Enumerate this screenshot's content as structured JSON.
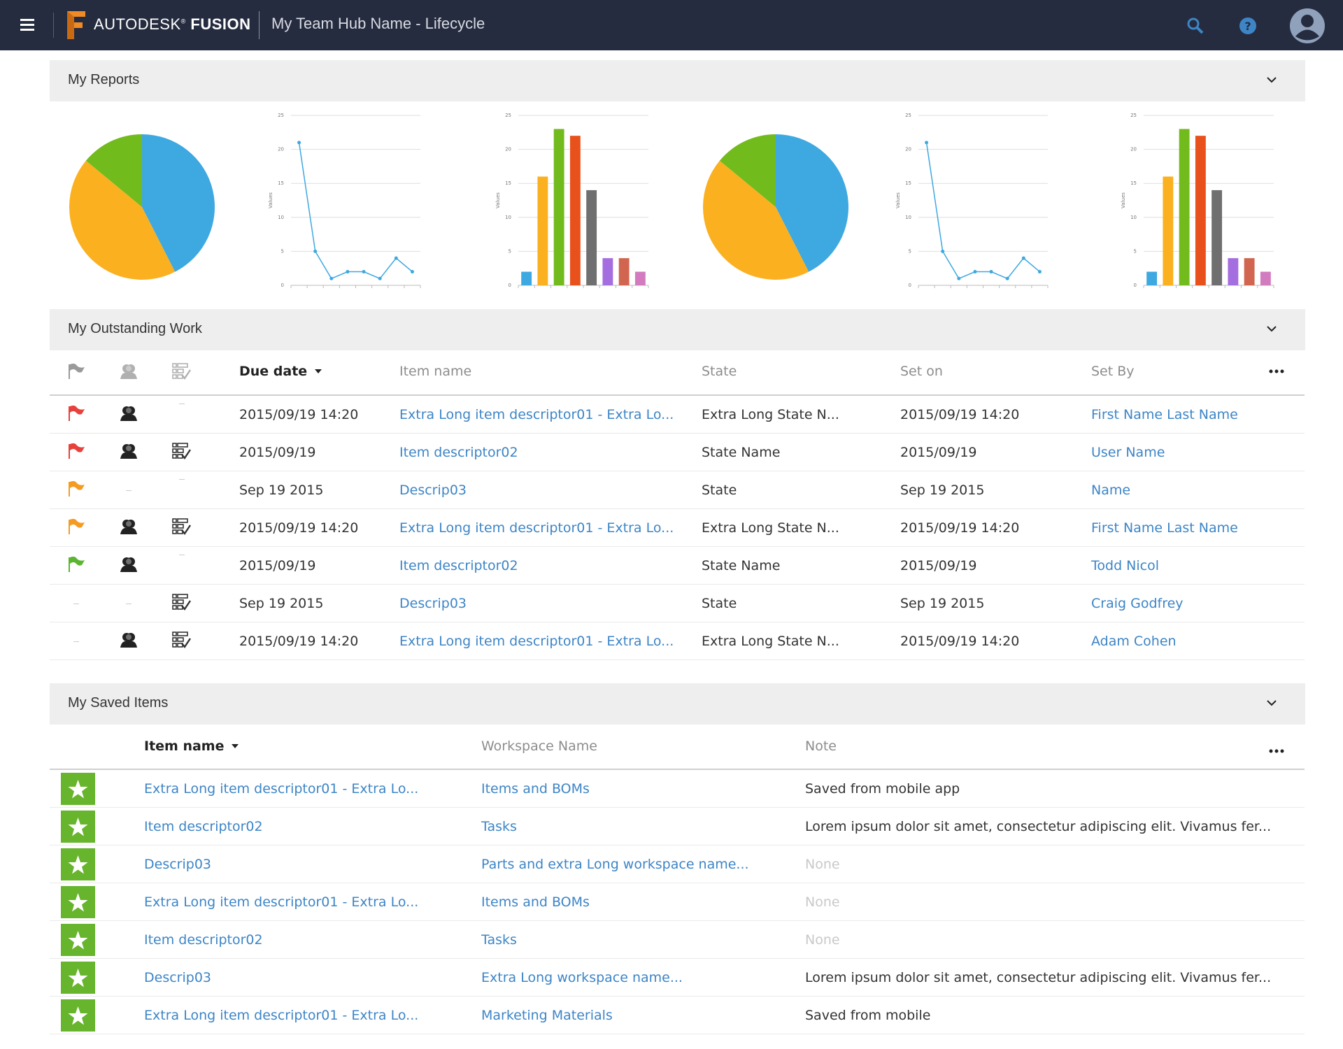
{
  "header": {
    "brand": "AUTODESK",
    "brand_mark": "®",
    "product": "FUSION",
    "hub_title": "My Team Hub Name - Lifecycle"
  },
  "reports": {
    "title": "My Reports",
    "charts": [
      {
        "type": "pie",
        "values": [
          42.5,
          43.5,
          14
        ],
        "colors": [
          "#3ea8e0",
          "#fbb020",
          "#72bb1d"
        ]
      },
      {
        "type": "line",
        "ylabel": "Values",
        "values": [
          21,
          5,
          1,
          2,
          2,
          1,
          4,
          2
        ],
        "color": "#3ea8e0",
        "ylim": [
          0,
          25
        ],
        "yticks": [
          0,
          5,
          10,
          15,
          20,
          25
        ],
        "grid": true
      },
      {
        "type": "bar",
        "ylabel": "Values",
        "values": [
          2,
          16,
          23,
          22,
          14,
          4,
          4,
          2
        ],
        "colors": [
          "#3ea8e0",
          "#fbb020",
          "#72bb1d",
          "#e8511b",
          "#6f6f6f",
          "#a56ee0",
          "#d2654f",
          "#d27bbf"
        ],
        "ylim": [
          0,
          25
        ],
        "yticks": [
          0,
          5,
          10,
          15,
          20,
          25
        ],
        "grid": true
      },
      {
        "type": "pie",
        "values": [
          42.5,
          43.5,
          14
        ],
        "colors": [
          "#3ea8e0",
          "#fbb020",
          "#72bb1d"
        ]
      },
      {
        "type": "line",
        "ylabel": "Values",
        "values": [
          21,
          5,
          1,
          2,
          2,
          1,
          4,
          2
        ],
        "color": "#3ea8e0",
        "ylim": [
          0,
          25
        ],
        "yticks": [
          0,
          5,
          10,
          15,
          20,
          25
        ],
        "grid": true
      },
      {
        "type": "bar",
        "ylabel": "Values",
        "values": [
          2,
          16,
          23,
          22,
          14,
          4,
          4,
          2
        ],
        "colors": [
          "#3ea8e0",
          "#fbb020",
          "#72bb1d",
          "#e8511b",
          "#6f6f6f",
          "#a56ee0",
          "#d2654f",
          "#d27bbf"
        ],
        "ylim": [
          0,
          25
        ],
        "yticks": [
          0,
          5,
          10,
          15,
          20,
          25
        ],
        "grid": true
      }
    ]
  },
  "outstanding": {
    "title": "My Outstanding Work",
    "columns": [
      "Due date",
      "Item name",
      "State",
      "Set on",
      "Set By"
    ],
    "rows": [
      {
        "flag": "#e8413c",
        "owner": true,
        "task": false,
        "due": "2015/09/19 14:20",
        "item": "Extra Long item descriptor01 - Extra Lo...",
        "state": "Extra Long State N...",
        "set_on": "2015/09/19 14:20",
        "set_by": "First Name Last Name"
      },
      {
        "flag": "#e8413c",
        "owner": true,
        "task": true,
        "due": "2015/09/19",
        "item": "Item descriptor02",
        "state": "State Name",
        "set_on": "2015/09/19",
        "set_by": "User Name"
      },
      {
        "flag": "#f59b23",
        "owner": false,
        "task": false,
        "due": "Sep 19 2015",
        "item": "Descrip03",
        "state": "State",
        "set_on": "Sep 19 2015",
        "set_by": "Name"
      },
      {
        "flag": "#f59b23",
        "owner": true,
        "task": true,
        "due": "2015/09/19 14:20",
        "item": "Extra Long item descriptor01 - Extra Lo...",
        "state": "Extra Long State N...",
        "set_on": "2015/09/19 14:20",
        "set_by": "First Name Last Name"
      },
      {
        "flag": "#5cb531",
        "owner": true,
        "task": false,
        "due": "2015/09/19",
        "item": "Item descriptor02",
        "state": "State Name",
        "set_on": "2015/09/19",
        "set_by": "Todd Nicol"
      },
      {
        "flag": null,
        "owner": false,
        "task": true,
        "due": "Sep 19 2015",
        "item": "Descrip03",
        "state": "State",
        "set_on": "Sep 19 2015",
        "set_by": "Craig Godfrey"
      },
      {
        "flag": null,
        "owner": true,
        "task": true,
        "due": "2015/09/19 14:20",
        "item": "Extra Long item descriptor01 - Extra Lo...",
        "state": "Extra Long State N...",
        "set_on": "2015/09/19 14:20",
        "set_by": "Adam Cohen"
      }
    ]
  },
  "saved": {
    "title": "My Saved Items",
    "columns": [
      "Item name",
      "Workspace Name",
      "Note"
    ],
    "rows": [
      {
        "item": "Extra Long item descriptor01 - Extra Lo...",
        "workspace": "Items and BOMs",
        "note": "Saved from mobile app",
        "note_muted": false
      },
      {
        "item": "Item descriptor02",
        "workspace": "Tasks",
        "note": "Lorem ipsum dolor sit amet, consectetur adipiscing elit. Vivamus fer...",
        "note_muted": false
      },
      {
        "item": "Descrip03",
        "workspace": "Parts and extra Long workspace name...",
        "note": "None",
        "note_muted": true
      },
      {
        "item": "Extra Long item descriptor01 - Extra Lo...",
        "workspace": "Items and BOMs",
        "note": "None",
        "note_muted": true
      },
      {
        "item": "Item descriptor02",
        "workspace": "Tasks",
        "note": "None",
        "note_muted": true
      },
      {
        "item": "Descrip03",
        "workspace": "Extra Long workspace name...",
        "note": "Lorem ipsum dolor sit amet, consectetur adipiscing elit. Vivamus fer...",
        "note_muted": false
      },
      {
        "item": "Extra Long item descriptor01 - Extra Lo...",
        "workspace": "Marketing Materials",
        "note": "Saved from mobile",
        "note_muted": false
      }
    ]
  }
}
